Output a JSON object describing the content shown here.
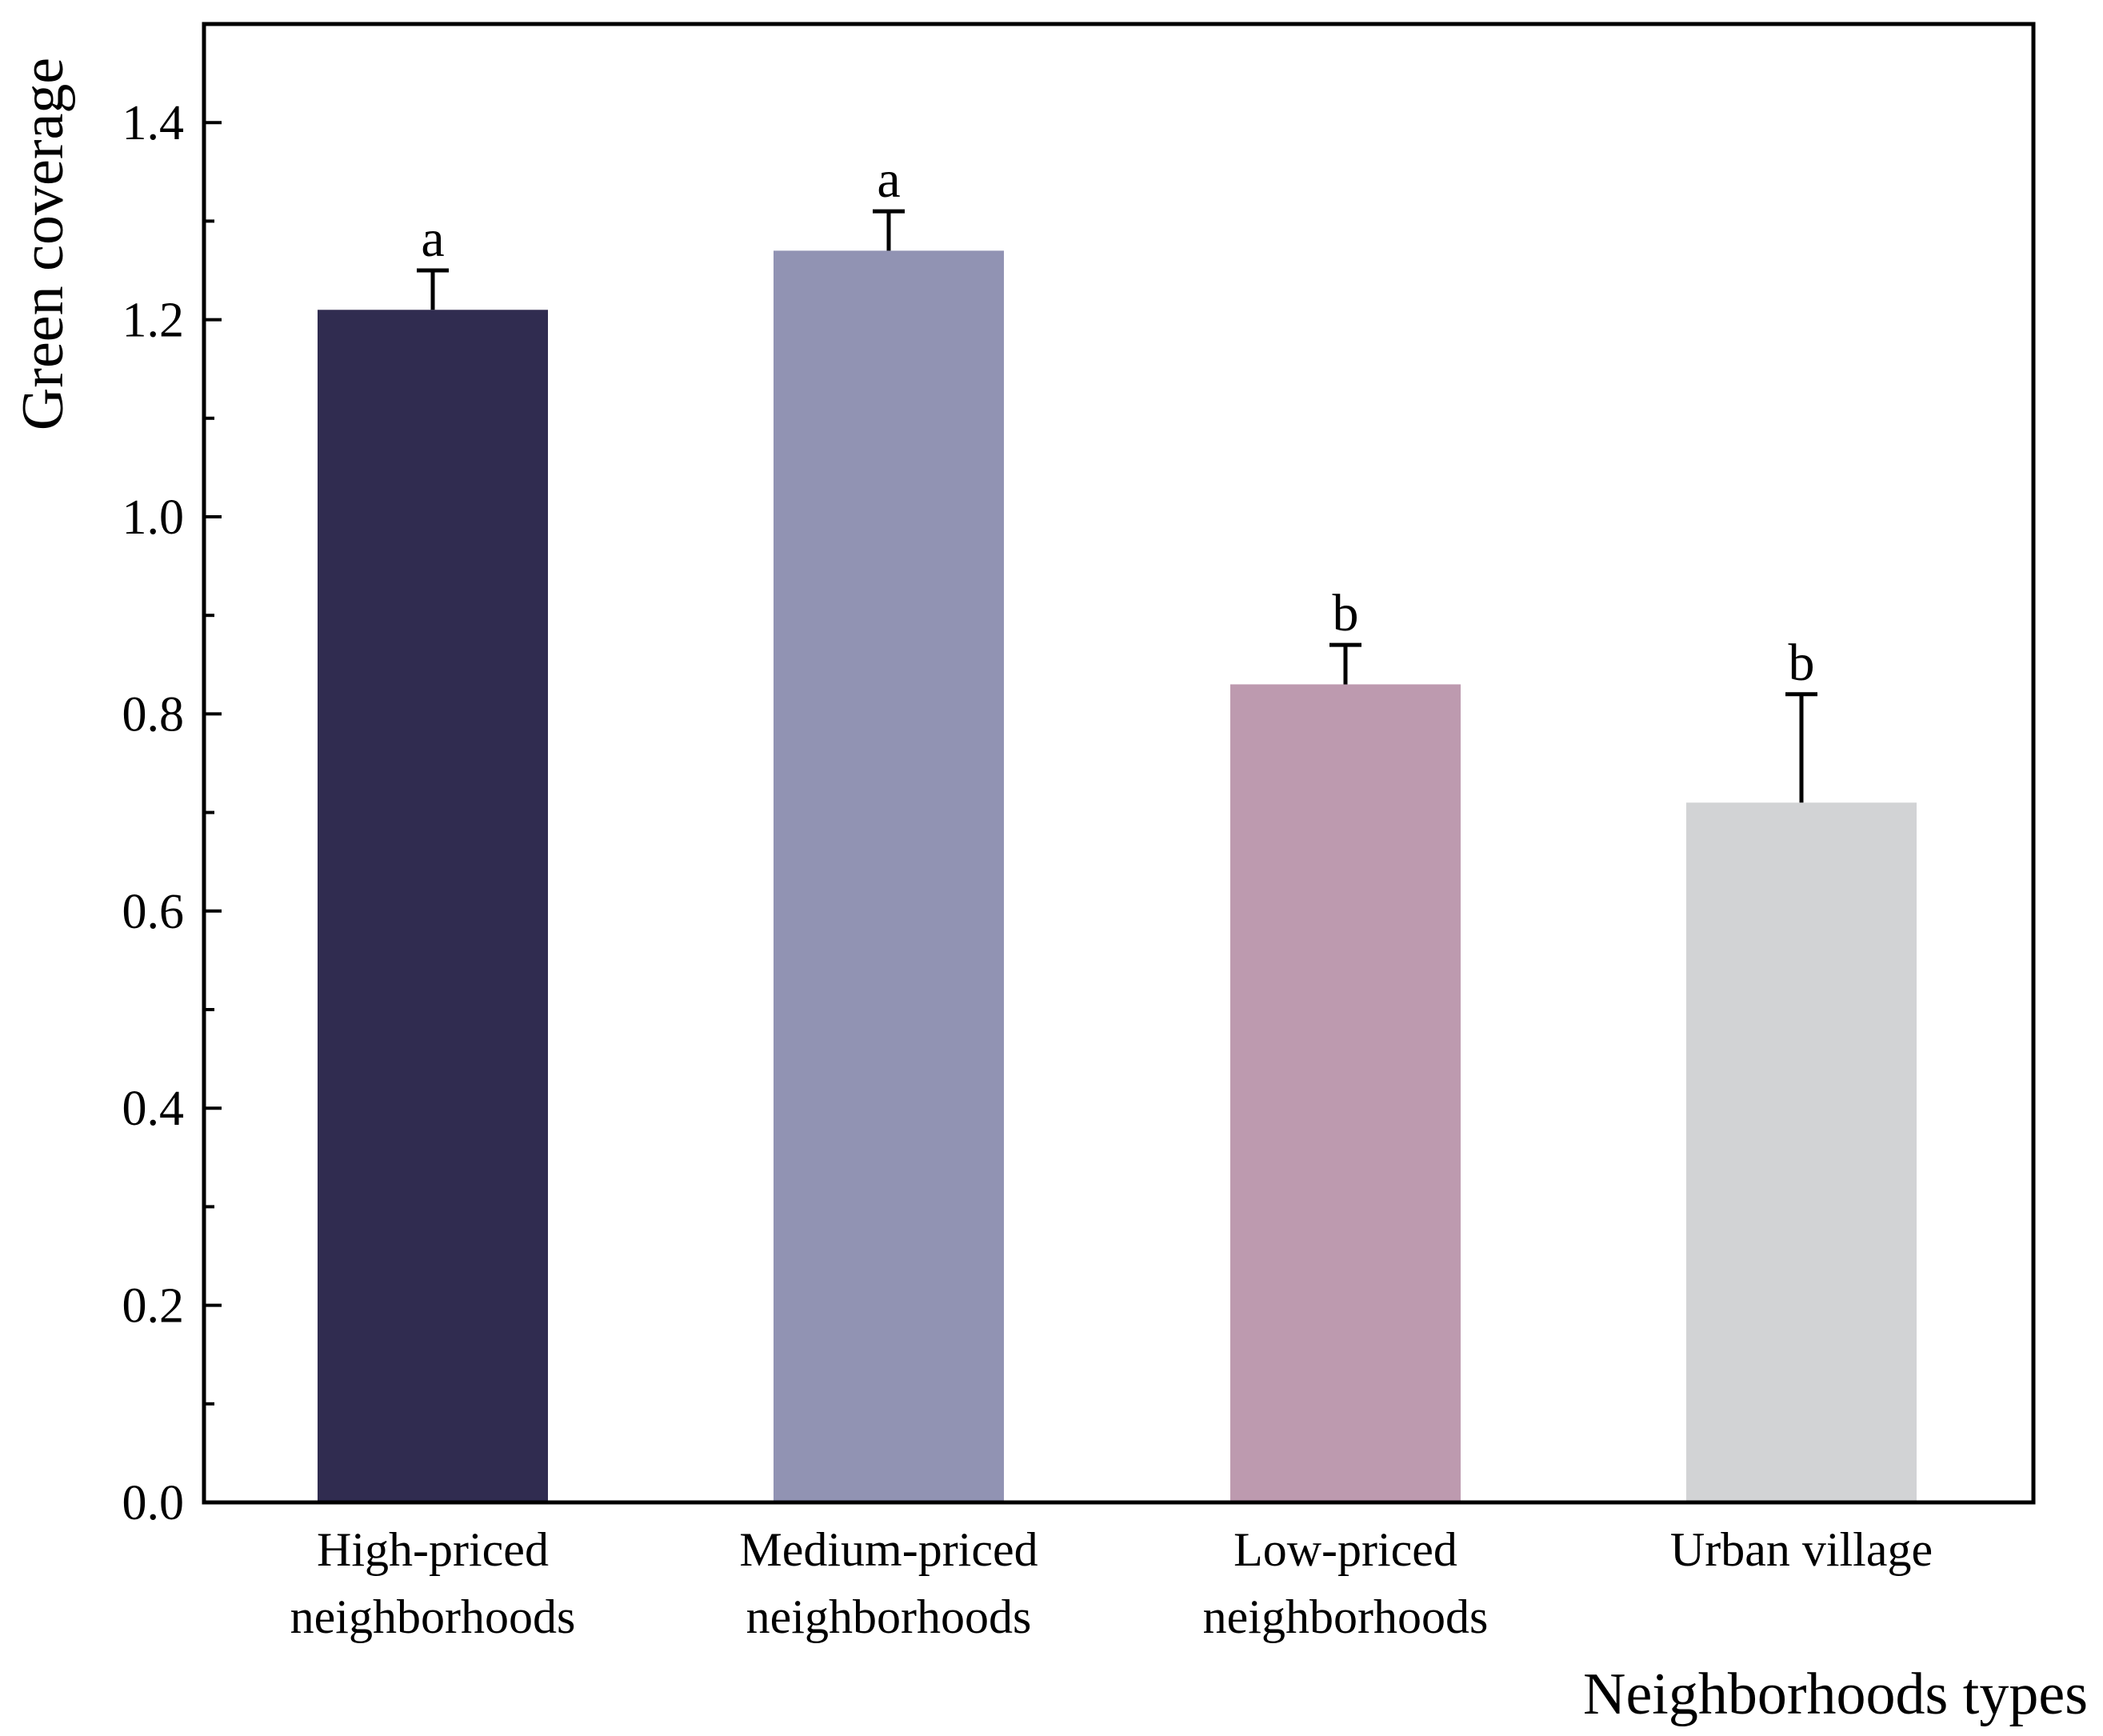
{
  "chart_data": {
    "type": "bar",
    "title": "",
    "xlabel": "Neighborhoods types",
    "ylabel": "Green coverage",
    "ylim": [
      0,
      1.5
    ],
    "yticks": [
      0.0,
      0.2,
      0.4,
      0.6,
      0.8,
      1.0,
      1.2,
      1.4
    ],
    "ytick_labels": [
      "0.0",
      "0.2",
      "0.4",
      "0.6",
      "0.8",
      "1.0",
      "1.2",
      "1.4"
    ],
    "grid": false,
    "categories": [
      [
        "High-priced",
        "neighborhoods"
      ],
      [
        "Medium-priced",
        "neighborhoods"
      ],
      [
        "Low-priced",
        "neighborhoods"
      ],
      [
        "Urban village"
      ]
    ],
    "values": [
      1.21,
      1.27,
      0.83,
      0.71
    ],
    "error_upper": [
      0.04,
      0.04,
      0.04,
      0.11
    ],
    "significance_labels": [
      "a",
      "a",
      "b",
      "b"
    ],
    "colors": [
      "#302c50",
      "#9193b3",
      "#bd9aaf",
      "#d2d3d5"
    ]
  }
}
